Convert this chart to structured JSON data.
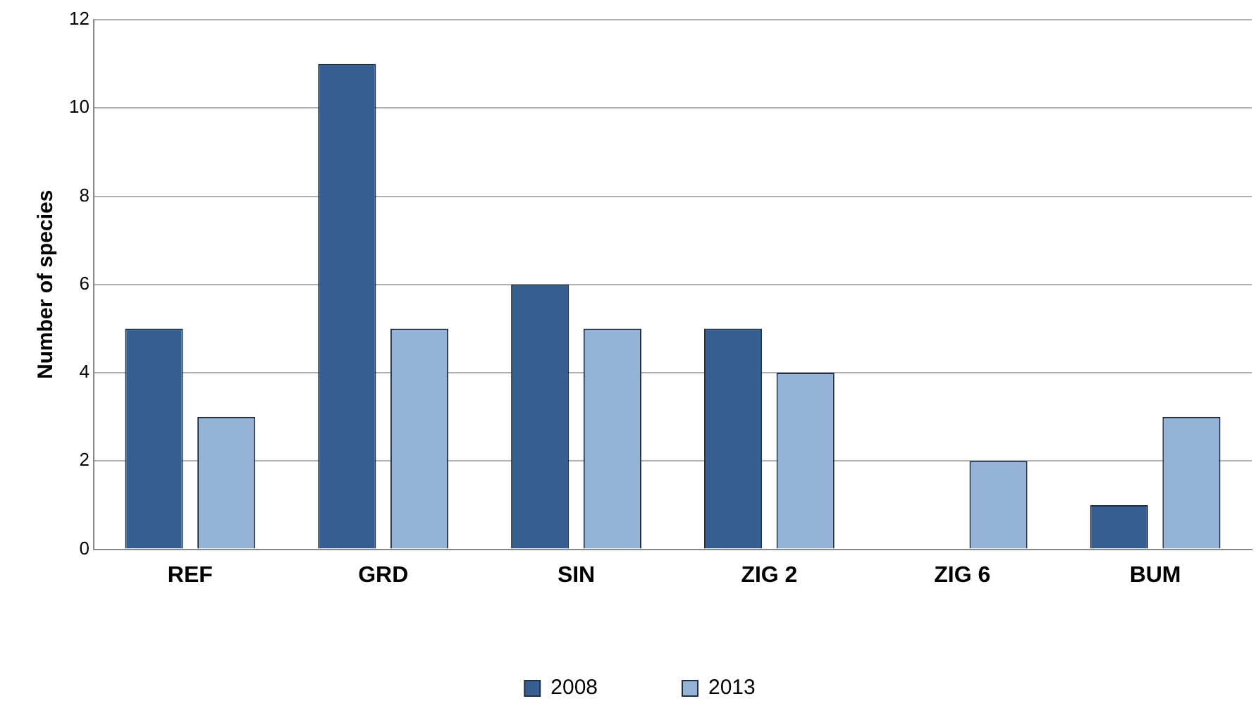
{
  "chart_data": {
    "type": "bar",
    "ylabel": "Number of species",
    "categories": [
      "REF",
      "GRD",
      "SIN",
      "ZIG 2",
      "ZIG 6",
      "BUM"
    ],
    "series": [
      {
        "name": "2008",
        "color": "#365f91",
        "values": [
          5,
          11,
          6,
          5,
          0,
          1
        ]
      },
      {
        "name": "2013",
        "color": "#95b3d7",
        "values": [
          3,
          5,
          5,
          4,
          2,
          3
        ]
      }
    ],
    "ylim": [
      0,
      12
    ],
    "yticks": [
      0,
      2,
      4,
      6,
      8,
      10,
      12
    ],
    "grid": "y",
    "legend": "bottom"
  }
}
